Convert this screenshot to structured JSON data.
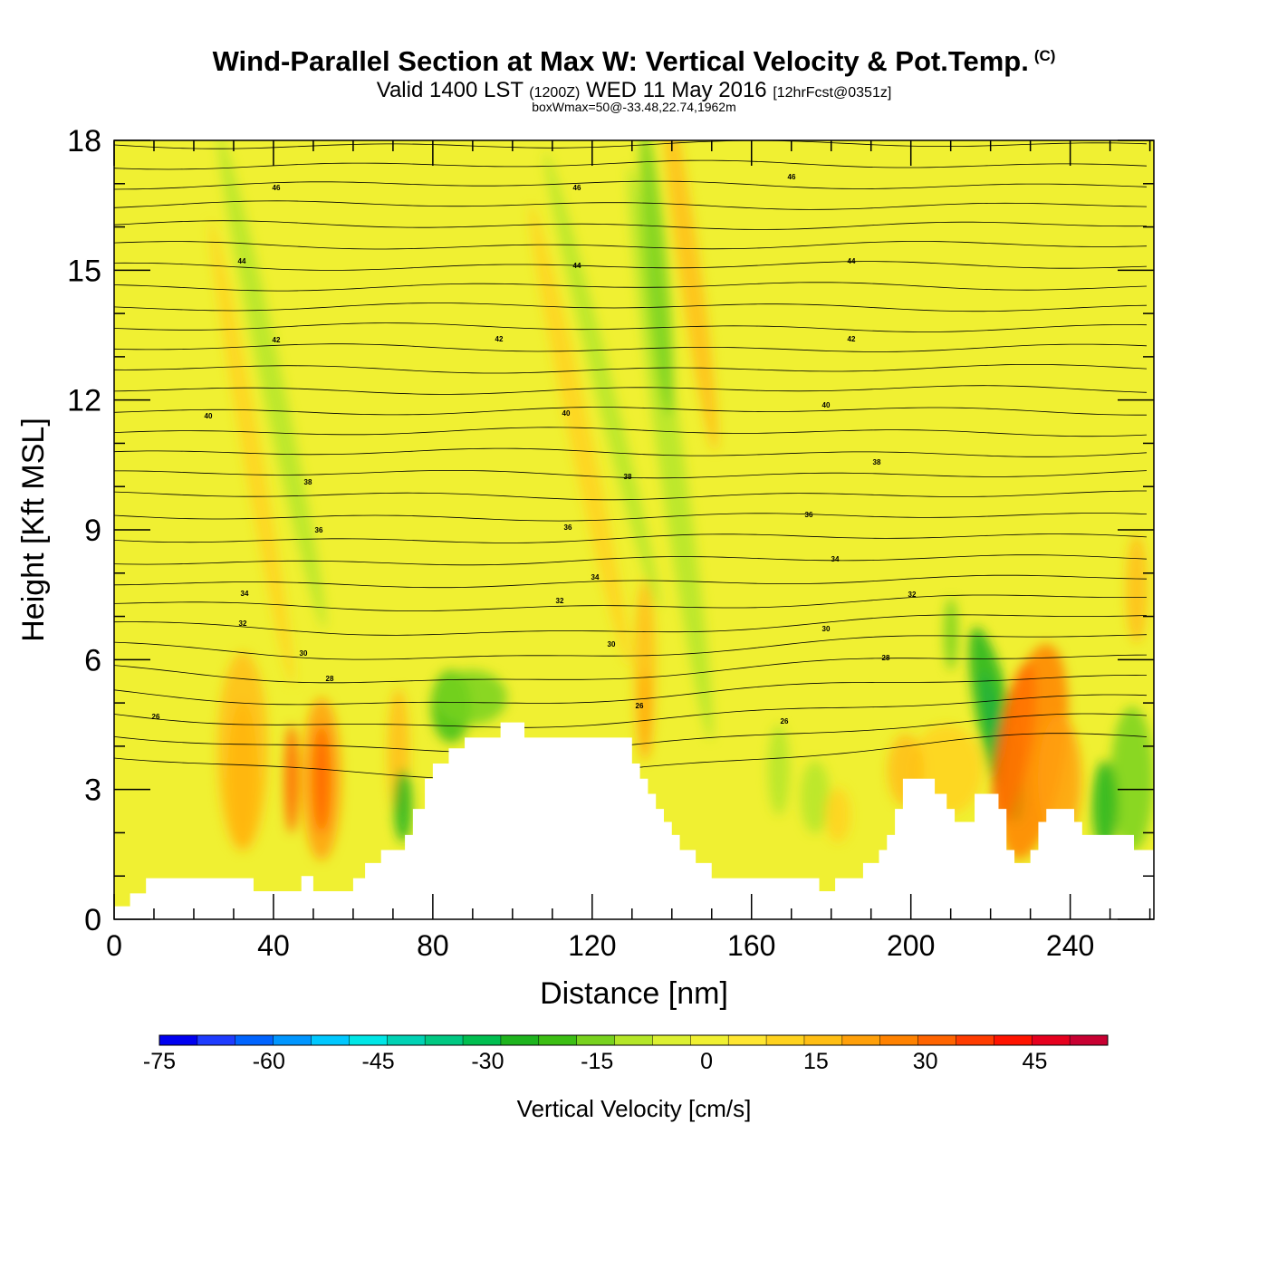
{
  "header": {
    "title": "Wind-Parallel Section at Max W: Vertical Velocity & Pot.Temp.",
    "copyright": "(C)",
    "sub_valid": "Valid 1400 LST",
    "sub_z": "(1200Z)",
    "sub_date": "WED 11 May 2016",
    "sub_fcst": "[12hrFcst@0351z]",
    "sub2": "boxWmax=50@-33.48,22.74,1962m"
  },
  "chart_data": {
    "type": "heatmap",
    "title": "Wind-Parallel Section at Max W: Vertical Velocity & Pot.Temp.",
    "xlabel": "Distance [nm]",
    "ylabel": "Height [Kft MSL]",
    "xlim": [
      0,
      261
    ],
    "ylim": [
      0,
      18
    ],
    "x_ticks": [
      0,
      40,
      80,
      120,
      160,
      200,
      240
    ],
    "y_ticks": [
      0,
      3,
      6,
      9,
      12,
      15,
      18
    ],
    "colorbar": {
      "label": "Vertical Velocity [cm/s]",
      "ticks": [
        -75,
        -60,
        -45,
        -30,
        -15,
        0,
        15,
        30,
        45
      ],
      "min": -75,
      "max": 55,
      "colors": [
        "#0000f0",
        "#1e3cff",
        "#0064ff",
        "#0096ff",
        "#00c8ff",
        "#00e6e6",
        "#00d2b4",
        "#00c882",
        "#00be50",
        "#1eb41e",
        "#3cbe14",
        "#78d21e",
        "#b4e628",
        "#dcf032",
        "#f0f032",
        "#ffe632",
        "#ffd21e",
        "#ffbe14",
        "#ffa00a",
        "#ff8200",
        "#ff6400",
        "#ff3c00",
        "#ff1400",
        "#e6001e",
        "#c80032"
      ]
    },
    "theta_contour_labels": [
      "46",
      "44",
      "42",
      "40",
      "38",
      "36",
      "34",
      "32",
      "30",
      "28",
      "26"
    ],
    "terrain_kft": [
      [
        0,
        0.3
      ],
      [
        4,
        0.3
      ],
      [
        4,
        0.6
      ],
      [
        8,
        0.6
      ],
      [
        8,
        0.95
      ],
      [
        35,
        0.95
      ],
      [
        35,
        0.65
      ],
      [
        47,
        0.65
      ],
      [
        47,
        1.0
      ],
      [
        50,
        1.0
      ],
      [
        50,
        0.65
      ],
      [
        60,
        0.65
      ],
      [
        60,
        0.95
      ],
      [
        63,
        0.95
      ],
      [
        63,
        1.3
      ],
      [
        67,
        1.3
      ],
      [
        67,
        1.6
      ],
      [
        73,
        1.6
      ],
      [
        73,
        1.95
      ],
      [
        75,
        1.95
      ],
      [
        75,
        2.55
      ],
      [
        78,
        2.55
      ],
      [
        78,
        3.25
      ],
      [
        80,
        3.25
      ],
      [
        80,
        3.6
      ],
      [
        84,
        3.6
      ],
      [
        84,
        3.95
      ],
      [
        88,
        3.95
      ],
      [
        88,
        4.2
      ],
      [
        97,
        4.2
      ],
      [
        97,
        4.55
      ],
      [
        103,
        4.55
      ],
      [
        103,
        4.2
      ],
      [
        130,
        4.2
      ],
      [
        130,
        3.6
      ],
      [
        132,
        3.6
      ],
      [
        132,
        3.25
      ],
      [
        134,
        3.25
      ],
      [
        134,
        2.9
      ],
      [
        136,
        2.9
      ],
      [
        136,
        2.55
      ],
      [
        138,
        2.55
      ],
      [
        138,
        2.25
      ],
      [
        140,
        2.25
      ],
      [
        140,
        1.95
      ],
      [
        142,
        1.95
      ],
      [
        142,
        1.6
      ],
      [
        146,
        1.6
      ],
      [
        146,
        1.3
      ],
      [
        150,
        1.3
      ],
      [
        150,
        0.95
      ],
      [
        177,
        0.95
      ],
      [
        177,
        0.65
      ],
      [
        181,
        0.65
      ],
      [
        181,
        0.95
      ],
      [
        188,
        0.95
      ],
      [
        188,
        1.3
      ],
      [
        192,
        1.3
      ],
      [
        192,
        1.6
      ],
      [
        194,
        1.6
      ],
      [
        194,
        1.95
      ],
      [
        196,
        1.95
      ],
      [
        196,
        2.55
      ],
      [
        198,
        2.55
      ],
      [
        198,
        3.25
      ],
      [
        206,
        3.25
      ],
      [
        206,
        2.9
      ],
      [
        209,
        2.9
      ],
      [
        209,
        2.55
      ],
      [
        211,
        2.55
      ],
      [
        211,
        2.25
      ],
      [
        216,
        2.25
      ],
      [
        216,
        2.9
      ],
      [
        222,
        2.9
      ],
      [
        222,
        2.55
      ],
      [
        224,
        2.55
      ],
      [
        224,
        1.6
      ],
      [
        226,
        1.6
      ],
      [
        226,
        1.3
      ],
      [
        230,
        1.3
      ],
      [
        230,
        1.6
      ],
      [
        232,
        1.6
      ],
      [
        232,
        2.25
      ],
      [
        234,
        2.25
      ],
      [
        234,
        2.55
      ],
      [
        241,
        2.55
      ],
      [
        241,
        2.25
      ],
      [
        243,
        2.25
      ],
      [
        243,
        1.95
      ],
      [
        256,
        1.95
      ],
      [
        256,
        1.6
      ],
      [
        261,
        1.6
      ]
    ]
  }
}
